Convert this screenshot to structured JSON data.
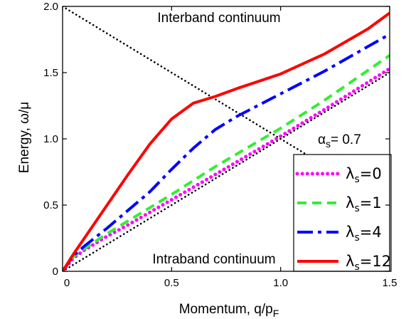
{
  "chart_data": {
    "type": "line",
    "xlabel": "Momentum, q/p",
    "xlabel_subscript": "F",
    "ylabel": "Energy, ω/μ",
    "xlim": [
      0,
      1.5
    ],
    "ylim": [
      0,
      2.0
    ],
    "x_ticks": [
      0,
      0.5,
      1.0,
      1.5
    ],
    "x_tick_labels": [
      "0",
      "0.5",
      "1.0",
      "1.5"
    ],
    "y_ticks": [
      0,
      0.5,
      1.0,
      1.5,
      2.0
    ],
    "y_tick_labels": [
      "0",
      "0.5",
      "1.0",
      "1.5",
      "2.0"
    ],
    "grid": false,
    "legend_position": "bottom-right",
    "annotations": {
      "interband": "Interband continuum",
      "intraband": "Intraband continuum",
      "alpha_symbol": "α",
      "alpha_sub": "s",
      "alpha_value": "= 0.7"
    },
    "boundaries": [
      {
        "name": "interband edge",
        "x": [
          0,
          1.5
        ],
        "y": [
          2.0,
          0.5
        ],
        "color": "#000000",
        "dash": "dotted"
      },
      {
        "name": "intraband edge",
        "x": [
          0,
          1.5
        ],
        "y": [
          0,
          1.5
        ],
        "color": "#000000",
        "dash": "dotted"
      }
    ],
    "series": [
      {
        "label": "λ",
        "sub": "s",
        "value": "=0",
        "color": "#ff00ff",
        "dash": "dotted",
        "x": [
          0,
          0.05,
          0.1,
          0.2,
          0.3,
          0.5,
          0.7,
          1.0,
          1.2,
          1.5
        ],
        "y": [
          0,
          0.1,
          0.16,
          0.26,
          0.35,
          0.54,
          0.73,
          1.02,
          1.22,
          1.53
        ]
      },
      {
        "label": "λ",
        "sub": "s",
        "value": "=1",
        "color": "#33ee33",
        "dash": "dashed",
        "x": [
          0,
          0.05,
          0.1,
          0.2,
          0.3,
          0.5,
          0.7,
          1.0,
          1.2,
          1.5
        ],
        "y": [
          0,
          0.11,
          0.17,
          0.28,
          0.38,
          0.58,
          0.79,
          1.08,
          1.29,
          1.63
        ]
      },
      {
        "label": "λ",
        "sub": "s",
        "value": "=4",
        "color": "#0000ff",
        "dash": "dashdot",
        "x": [
          0,
          0.05,
          0.1,
          0.2,
          0.3,
          0.4,
          0.5,
          0.6,
          0.7,
          0.8,
          1.0,
          1.2,
          1.5
        ],
        "y": [
          0,
          0.12,
          0.19,
          0.32,
          0.46,
          0.6,
          0.77,
          0.93,
          1.07,
          1.17,
          1.34,
          1.51,
          1.79
        ]
      },
      {
        "label": "λ",
        "sub": "s",
        "value": "=12",
        "color": "#ff0000",
        "dash": "solid",
        "x": [
          0,
          0.05,
          0.1,
          0.2,
          0.3,
          0.4,
          0.5,
          0.6,
          0.7,
          0.8,
          1.0,
          1.2,
          1.4,
          1.5
        ],
        "y": [
          0,
          0.13,
          0.25,
          0.49,
          0.73,
          0.96,
          1.15,
          1.27,
          1.32,
          1.38,
          1.49,
          1.64,
          1.83,
          1.95
        ]
      }
    ]
  }
}
